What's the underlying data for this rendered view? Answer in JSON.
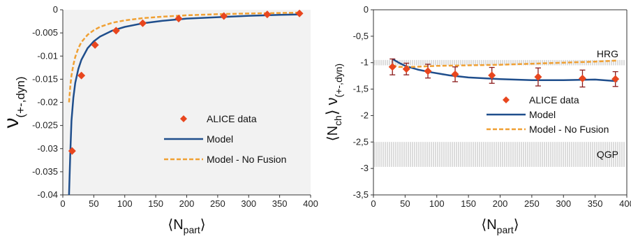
{
  "chart_data": [
    {
      "type": "scatter",
      "title": "",
      "xlabel_main": "⟨N",
      "xlabel_sub": "part",
      "xlabel_close": "⟩",
      "ylabel_main": "ν",
      "ylabel_sub": "(+-,dyn)",
      "xlim": [
        0,
        400
      ],
      "ylim": [
        -0.04,
        0
      ],
      "xticks": [
        0,
        50,
        100,
        150,
        200,
        250,
        300,
        350,
        400
      ],
      "yticks": [
        0,
        -0.005,
        -0.01,
        -0.015,
        -0.02,
        -0.025,
        -0.03,
        -0.035,
        -0.04
      ],
      "legend_position": "center-right",
      "series": [
        {
          "name": "ALICE data",
          "kind": "points",
          "color": "#e8461e",
          "x": [
            15,
            30,
            52,
            86,
            129,
            187,
            260,
            330,
            382
          ],
          "y": [
            -0.0305,
            -0.0142,
            -0.0076,
            -0.0045,
            -0.0029,
            -0.0019,
            -0.00135,
            -0.001,
            -0.0008
          ]
        },
        {
          "name": "Model",
          "kind": "line",
          "color": "#1f4e8c",
          "x": [
            10,
            12,
            14,
            17,
            20,
            25,
            30,
            40,
            50,
            60,
            80,
            100,
            130,
            160,
            200,
            250,
            300,
            350,
            385
          ],
          "y": [
            -0.04,
            -0.031,
            -0.024,
            -0.019,
            -0.0158,
            -0.0128,
            -0.0108,
            -0.0083,
            -0.0068,
            -0.0058,
            -0.0045,
            -0.0037,
            -0.0029,
            -0.0024,
            -0.0019,
            -0.0016,
            -0.0013,
            -0.0011,
            -0.001
          ]
        },
        {
          "name": "Model - No Fusion",
          "kind": "dashed",
          "color": "#f0a033",
          "x": [
            10,
            12,
            14,
            17,
            20,
            25,
            30,
            40,
            50,
            60,
            80,
            100,
            130,
            160,
            200,
            250,
            300,
            350,
            385
          ],
          "y": [
            -0.02,
            -0.0165,
            -0.0142,
            -0.0119,
            -0.0102,
            -0.0083,
            -0.007,
            -0.0054,
            -0.0044,
            -0.0037,
            -0.0028,
            -0.0023,
            -0.0018,
            -0.0015,
            -0.0012,
            -0.00095,
            -0.0008,
            -0.0007,
            -0.0006
          ]
        }
      ]
    },
    {
      "type": "scatter",
      "title": "",
      "xlabel_main": "⟨N",
      "xlabel_sub": "part",
      "xlabel_close": "⟩",
      "ylabel_main": "⟨N",
      "ylabel_sub": "ch",
      "ylabel_mid": "⟩ ν",
      "ylabel_sub2": "(+-,dyn)",
      "xlim": [
        0,
        400
      ],
      "ylim": [
        -3.5,
        0
      ],
      "xticks": [
        0,
        50,
        100,
        150,
        200,
        250,
        300,
        350,
        400
      ],
      "yticks": [
        0,
        -0.5,
        -1,
        -1.5,
        -2,
        -2.5,
        -3,
        -3.5
      ],
      "ytick_labels": [
        "0",
        "-0,5",
        "-1",
        "-1,5",
        "-2",
        "-2,5",
        "-3",
        "-3,5"
      ],
      "legend_position": "center-right",
      "bands": [
        {
          "name": "HRG",
          "y_low": -1.05,
          "y_high": -0.95
        },
        {
          "name": "QGP",
          "y_low": -2.97,
          "y_high": -2.5
        }
      ],
      "series": [
        {
          "name": "ALICE data",
          "kind": "points",
          "color": "#e8461e",
          "x": [
            30,
            52,
            86,
            129,
            187,
            260,
            330,
            382
          ],
          "y": [
            -1.08,
            -1.12,
            -1.16,
            -1.22,
            -1.24,
            -1.27,
            -1.3,
            -1.31
          ],
          "err": [
            0.15,
            0.11,
            0.13,
            0.14,
            0.15,
            0.17,
            0.16,
            0.14
          ]
        },
        {
          "name": "Model",
          "kind": "line",
          "color": "#1f4e8c",
          "x": [
            30,
            40,
            50,
            70,
            90,
            120,
            150,
            200,
            250,
            300,
            350,
            385
          ],
          "y": [
            -0.93,
            -1.0,
            -1.06,
            -1.13,
            -1.18,
            -1.24,
            -1.28,
            -1.31,
            -1.33,
            -1.33,
            -1.32,
            -1.35
          ]
        },
        {
          "name": "Model -  No Fusion",
          "kind": "dashed",
          "color": "#f0a033",
          "x": [
            30,
            40,
            60,
            100,
            150,
            200,
            250,
            300,
            350,
            385
          ],
          "y": [
            -1.05,
            -1.08,
            -1.08,
            -1.06,
            -1.05,
            -1.04,
            -1.02,
            -1.0,
            -0.98,
            -0.96
          ]
        }
      ]
    }
  ]
}
